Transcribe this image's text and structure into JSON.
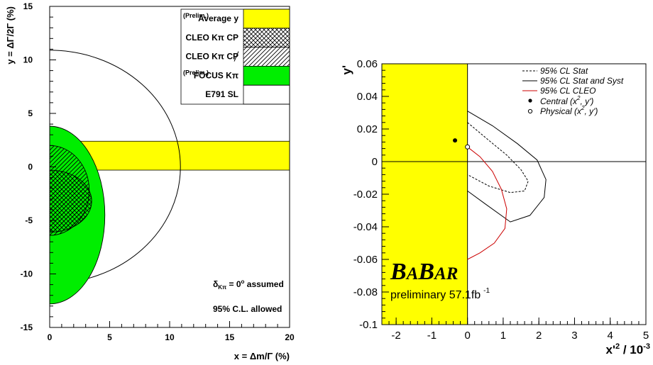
{
  "chart_data": [
    {
      "type": "scatter",
      "panel": "left",
      "xlabel": "x = Δm/Γ (%)",
      "ylabel": "y = ΔΓ/2Γ (%)",
      "xlim": [
        0,
        20
      ],
      "ylim": [
        -15,
        15
      ],
      "xticks": [
        "0",
        "5",
        "10",
        "15",
        "20"
      ],
      "yticks": [
        "-15",
        "-10",
        "-5",
        "0",
        "5",
        "10",
        "15"
      ],
      "grid": false,
      "legend_position": "top-right",
      "legend": [
        {
          "key": "avg",
          "prelim": "(Prelim.)",
          "label": "Average y",
          "color": "#ffff00",
          "style": "fill"
        },
        {
          "key": "cleo_cp",
          "prelim": "",
          "label": "CLEO Kπ CP",
          "color": "#000000",
          "style": "crosshatch"
        },
        {
          "key": "cleo_cpv",
          "prelim": "",
          "label": "CLEO Kπ CP",
          "color": "#000000",
          "style": "hatch"
        },
        {
          "key": "focus",
          "prelim": "(Prelim.)",
          "label": "FOCUS Kπ",
          "color": "#00ee00",
          "style": "fill"
        },
        {
          "key": "e791",
          "prelim": "",
          "label": "E791 SL",
          "color": "#000000",
          "style": "outline"
        }
      ],
      "series": [
        {
          "key": "avg",
          "shape": "band",
          "y_range": [
            -0.3,
            2.4
          ],
          "x_range": [
            0,
            20
          ]
        },
        {
          "key": "e791",
          "shape": "circle",
          "center": [
            0,
            0
          ],
          "radius": 10.9
        },
        {
          "key": "focus",
          "shape": "ellipse",
          "center": [
            0,
            -4.5
          ],
          "rx": 4.6,
          "ry": 8.3
        },
        {
          "key": "cleo_cpv",
          "shape": "ellipse",
          "center": [
            0,
            -2.2
          ],
          "rx": 3.3,
          "ry": 4.2
        },
        {
          "key": "cleo_cp",
          "shape": "ellipse",
          "center": [
            0,
            -3.2
          ],
          "rx": 3.5,
          "ry": 2.9
        }
      ],
      "annotations": [
        "δ",
        "Kπ",
        " = 0",
        "o",
        " assumed",
        "95% C.L. allowed"
      ]
    },
    {
      "type": "line",
      "panel": "right",
      "xlabel": "x'² / 10⁻³",
      "ylabel": "y'",
      "xlim": [
        -2.4,
        5.0
      ],
      "ylim": [
        -0.1,
        0.06
      ],
      "xticks": [
        {
          "v": -2,
          "t": "-2"
        },
        {
          "v": -1,
          "t": "-1"
        },
        {
          "v": 0,
          "t": "0"
        },
        {
          "v": 1,
          "t": "1"
        },
        {
          "v": 2,
          "t": "2"
        },
        {
          "v": 3,
          "t": "3"
        },
        {
          "v": 4,
          "t": "4"
        },
        {
          "v": 5,
          "t": "5"
        }
      ],
      "yticks": [
        {
          "v": 0.06,
          "t": "0.06"
        },
        {
          "v": 0.04,
          "t": "0.04"
        },
        {
          "v": 0.02,
          "t": "0.02"
        },
        {
          "v": 0,
          "t": "0"
        },
        {
          "v": -0.02,
          "t": "-0.02"
        },
        {
          "v": -0.04,
          "t": "-0.04"
        },
        {
          "v": -0.06,
          "t": "-0.06"
        },
        {
          "v": -0.08,
          "t": "-0.08"
        },
        {
          "v": -0.1,
          "t": "-0.1"
        }
      ],
      "grid": false,
      "legend_position": "top-right",
      "legend": [
        {
          "label": "95% CL Stat",
          "style": "dashed",
          "color": "#000000"
        },
        {
          "label": "95% CL Stat and Syst",
          "style": "solid",
          "color": "#000000"
        },
        {
          "label": "95% CL CLEO",
          "style": "solid",
          "color": "#cc0000"
        },
        {
          "label": "Central (x², y')",
          "style": "filled-dot",
          "color": "#000000"
        },
        {
          "label": "Physical (x², y')",
          "style": "open-dot",
          "color": "#000000"
        }
      ],
      "unphysical_region": {
        "x_range": [
          -2.4,
          0
        ],
        "y_range": [
          -0.1,
          0.06
        ],
        "color": "#ffff00"
      },
      "series": [
        {
          "name": "95% CL Stat",
          "points": [
            [
              0,
              0.024
            ],
            [
              0.6,
              0.013
            ],
            [
              1.1,
              0.004
            ],
            [
              1.5,
              -0.005
            ],
            [
              1.7,
              -0.012
            ],
            [
              1.6,
              -0.018
            ],
            [
              1.2,
              -0.019
            ],
            [
              0.6,
              -0.015
            ],
            [
              0,
              -0.008
            ]
          ]
        },
        {
          "name": "95% CL Stat and Syst",
          "points": [
            [
              0,
              0.031
            ],
            [
              0.7,
              0.022
            ],
            [
              1.4,
              0.011
            ],
            [
              1.95,
              0.001
            ],
            [
              2.2,
              -0.011
            ],
            [
              2.15,
              -0.022
            ],
            [
              1.75,
              -0.033
            ],
            [
              1.2,
              -0.037
            ],
            [
              0.5,
              -0.026
            ],
            [
              0,
              -0.018
            ]
          ]
        },
        {
          "name": "95% CL CLEO",
          "points": [
            [
              0,
              0.009
            ],
            [
              0.35,
              0.003
            ],
            [
              0.7,
              -0.006
            ],
            [
              0.95,
              -0.017
            ],
            [
              1.1,
              -0.029
            ],
            [
              1.05,
              -0.041
            ],
            [
              0.75,
              -0.05
            ],
            [
              0.35,
              -0.056
            ],
            [
              0,
              -0.06
            ]
          ]
        }
      ],
      "central": {
        "x": -0.35,
        "y": 0.013
      },
      "physical": {
        "x": 0,
        "y": 0.009
      },
      "logo": {
        "text_b1": "B",
        "text_a1": "A",
        "text_b2": "B",
        "text_ar": "AR"
      },
      "preliminary": {
        "text": "preliminary 57.1fb",
        "sup": "-1"
      }
    }
  ]
}
